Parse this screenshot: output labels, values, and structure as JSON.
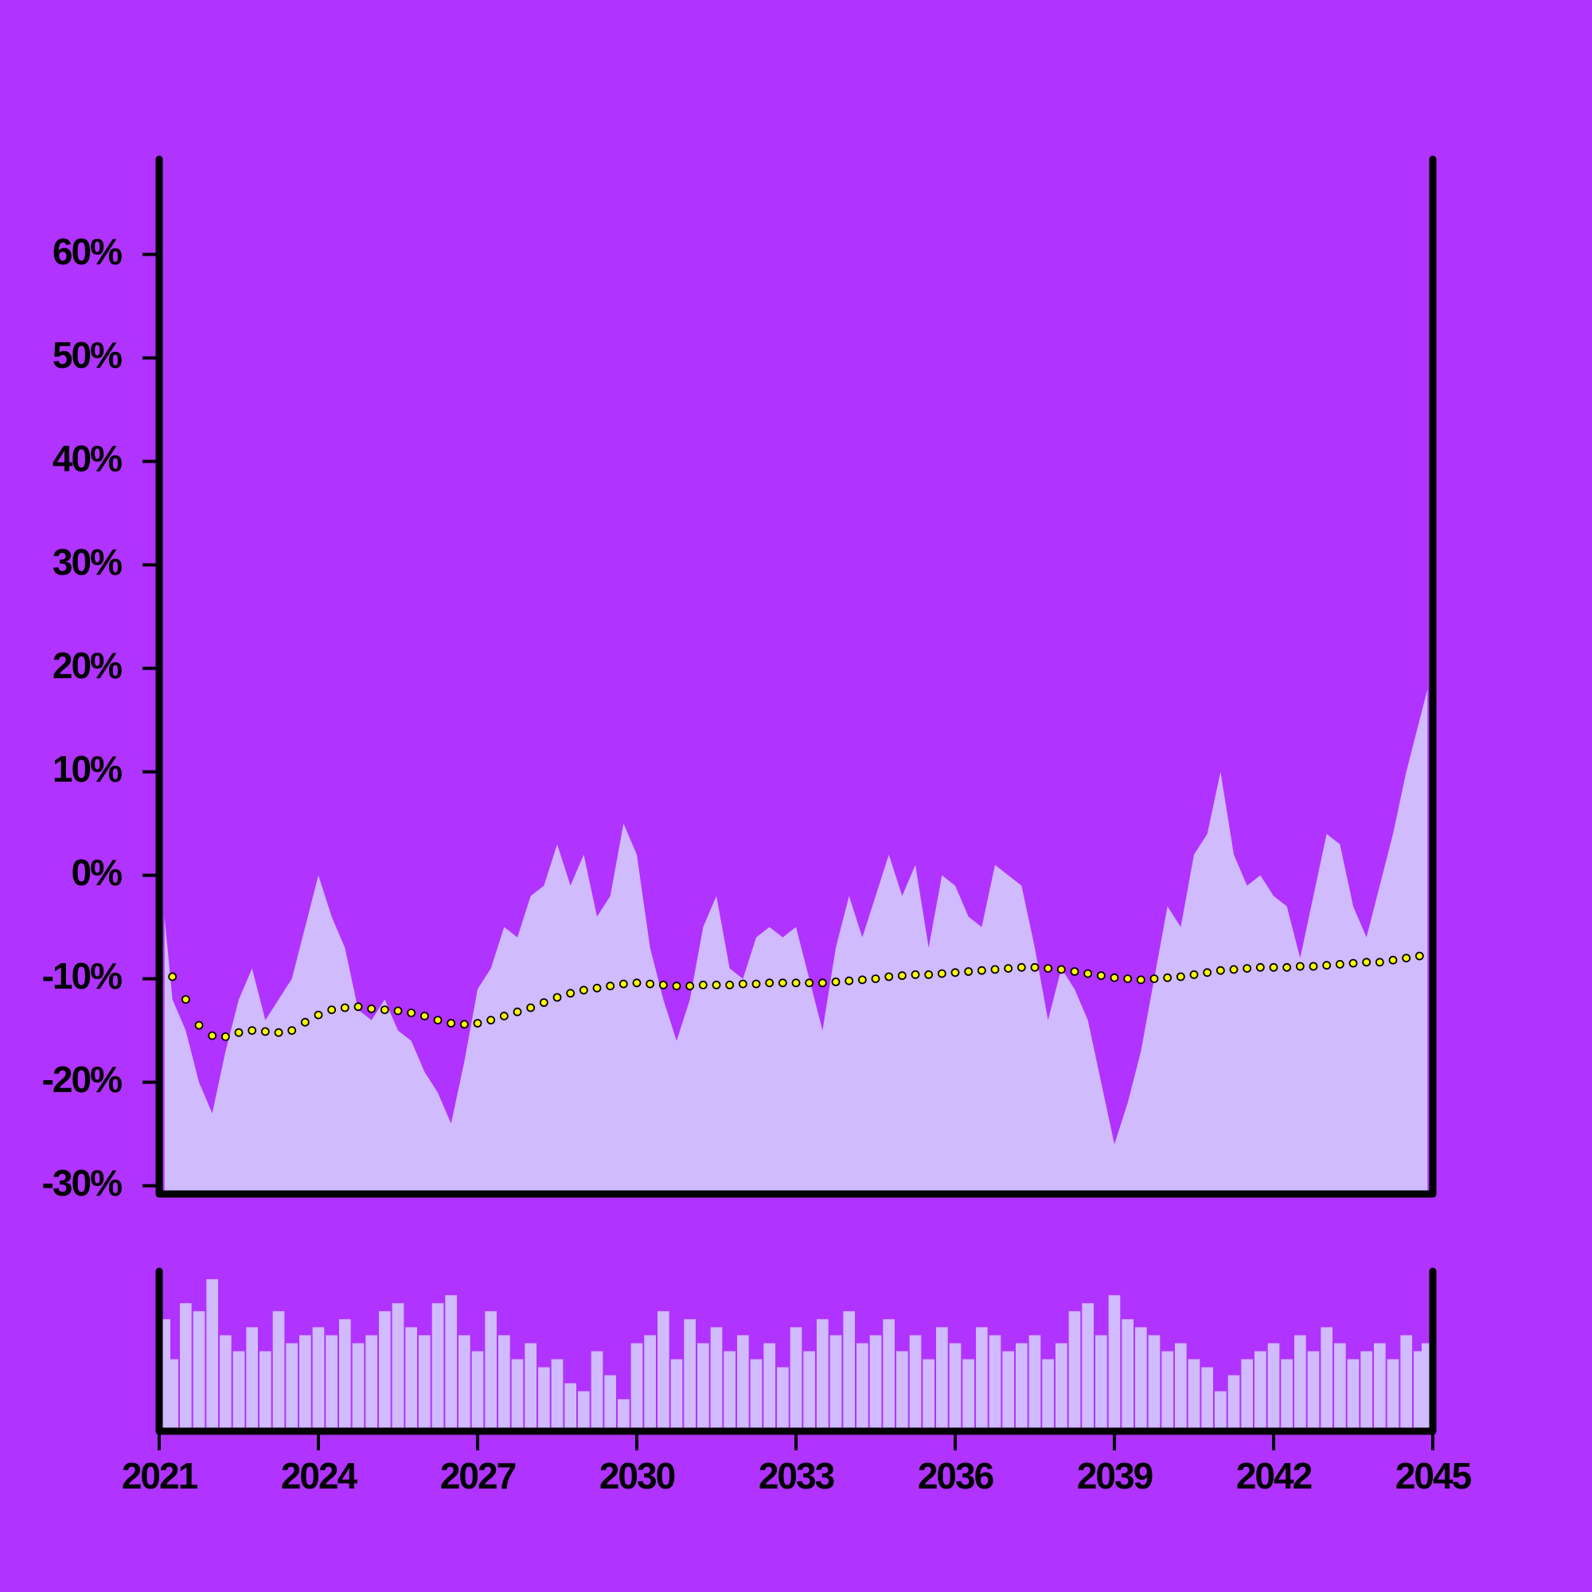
{
  "chart_data": [
    {
      "type": "line",
      "xlim": [
        2021,
        2045
      ],
      "ylim": [
        -30.8,
        69.2
      ],
      "yticks": [
        {
          "value": -30,
          "label": "-30%"
        },
        {
          "value": -20,
          "label": "-20%"
        },
        {
          "value": -10,
          "label": "-10%"
        },
        {
          "value": 0,
          "label": "0%"
        },
        {
          "value": 10,
          "label": "10%"
        },
        {
          "value": 20,
          "label": "20%"
        },
        {
          "value": 30,
          "label": "30%"
        },
        {
          "value": 40,
          "label": "40%"
        },
        {
          "value": 50,
          "label": "50%"
        },
        {
          "value": 60,
          "label": "60%"
        }
      ],
      "background": "#b033ff",
      "series": [
        {
          "type": "area",
          "color": "#d0bbff",
          "x": [
            2021.1,
            2021.25,
            2021.5,
            2021.75,
            2022,
            2022.25,
            2022.5,
            2022.75,
            2023,
            2023.25,
            2023.5,
            2023.75,
            2024,
            2024.25,
            2024.5,
            2024.75,
            2025,
            2025.25,
            2025.5,
            2025.75,
            2026,
            2026.25,
            2026.5,
            2026.75,
            2027,
            2027.25,
            2027.5,
            2027.75,
            2028,
            2028.25,
            2028.5,
            2028.75,
            2029,
            2029.25,
            2029.5,
            2029.75,
            2030,
            2030.25,
            2030.5,
            2030.75,
            2031,
            2031.25,
            2031.5,
            2031.75,
            2032,
            2032.25,
            2032.5,
            2032.75,
            2033,
            2033.25,
            2033.5,
            2033.75,
            2034,
            2034.25,
            2034.5,
            2034.75,
            2035,
            2035.25,
            2035.5,
            2035.75,
            2036,
            2036.25,
            2036.5,
            2036.75,
            2037,
            2037.25,
            2037.5,
            2037.75,
            2038,
            2038.25,
            2038.5,
            2038.75,
            2039,
            2039.25,
            2039.5,
            2039.75,
            2040,
            2040.25,
            2040.5,
            2040.75,
            2041,
            2041.25,
            2041.5,
            2041.75,
            2042,
            2042.25,
            2042.5,
            2042.75,
            2043,
            2043.25,
            2043.5,
            2043.75,
            2044,
            2044.25,
            2044.5,
            2044.75,
            2044.9
          ],
          "values": [
            -4,
            -12,
            -15,
            -20,
            -23,
            -17,
            -12,
            -9,
            -14,
            -12,
            -10,
            -5,
            0,
            -4,
            -7,
            -13,
            -14,
            -12,
            -15,
            -16,
            -19,
            -21,
            -24,
            -18,
            -11,
            -9,
            -5,
            -6,
            -2,
            -1,
            3,
            -1,
            2,
            -4,
            -2,
            5,
            2,
            -7,
            -12,
            -16,
            -12,
            -5,
            -2,
            -9,
            -10,
            -6,
            -5,
            -6,
            -5,
            -10,
            -15,
            -7,
            -2,
            -6,
            -2,
            2,
            -2,
            1,
            -7,
            0,
            -1,
            -4,
            -5,
            1,
            0,
            -1,
            -7,
            -14,
            -9,
            -11,
            -14,
            -20,
            -26,
            -22,
            -17,
            -10,
            -3,
            -5,
            2,
            4,
            10,
            2,
            -1,
            0,
            -2,
            -3,
            -8,
            -2,
            4,
            3,
            -3,
            -6,
            -1,
            4,
            10,
            15,
            18
          ]
        },
        {
          "type": "scatter",
          "color": "#ffff00",
          "x": [
            2021.25,
            2021.5,
            2021.75,
            2022,
            2022.25,
            2022.5,
            2022.75,
            2023,
            2023.25,
            2023.5,
            2023.75,
            2024,
            2024.25,
            2024.5,
            2024.75,
            2025,
            2025.25,
            2025.5,
            2025.75,
            2026,
            2026.25,
            2026.5,
            2026.75,
            2027,
            2027.25,
            2027.5,
            2027.75,
            2028,
            2028.25,
            2028.5,
            2028.75,
            2029,
            2029.25,
            2029.5,
            2029.75,
            2030,
            2030.25,
            2030.5,
            2030.75,
            2031,
            2031.25,
            2031.5,
            2031.75,
            2032,
            2032.25,
            2032.5,
            2032.75,
            2033,
            2033.25,
            2033.5,
            2033.75,
            2034,
            2034.25,
            2034.5,
            2034.75,
            2035,
            2035.25,
            2035.5,
            2035.75,
            2036,
            2036.25,
            2036.5,
            2036.75,
            2037,
            2037.25,
            2037.5,
            2037.75,
            2038,
            2038.25,
            2038.5,
            2038.75,
            2039,
            2039.25,
            2039.5,
            2039.75,
            2040,
            2040.25,
            2040.5,
            2040.75,
            2041,
            2041.25,
            2041.5,
            2041.75,
            2042,
            2042.25,
            2042.5,
            2042.75,
            2043,
            2043.25,
            2043.5,
            2043.75,
            2044,
            2044.25,
            2044.5,
            2044.75
          ],
          "values": [
            -9.8,
            -12,
            -14.5,
            -15.5,
            -15.6,
            -15.2,
            -15,
            -15.1,
            -15.2,
            -15,
            -14.2,
            -13.5,
            -13,
            -12.8,
            -12.7,
            -12.9,
            -13,
            -13.1,
            -13.3,
            -13.6,
            -14,
            -14.3,
            -14.4,
            -14.3,
            -14,
            -13.6,
            -13.2,
            -12.8,
            -12.3,
            -11.8,
            -11.4,
            -11.1,
            -10.9,
            -10.7,
            -10.5,
            -10.4,
            -10.5,
            -10.6,
            -10.7,
            -10.7,
            -10.6,
            -10.6,
            -10.6,
            -10.5,
            -10.5,
            -10.4,
            -10.4,
            -10.4,
            -10.4,
            -10.4,
            -10.3,
            -10.2,
            -10.1,
            -10,
            -9.8,
            -9.7,
            -9.6,
            -9.6,
            -9.5,
            -9.4,
            -9.3,
            -9.2,
            -9.1,
            -9,
            -8.9,
            -8.9,
            -9,
            -9.1,
            -9.3,
            -9.5,
            -9.7,
            -9.9,
            -10,
            -10.1,
            -10,
            -9.9,
            -9.8,
            -9.6,
            -9.4,
            -9.2,
            -9.1,
            -9,
            -8.9,
            -8.9,
            -8.9,
            -8.8,
            -8.8,
            -8.7,
            -8.6,
            -8.5,
            -8.4,
            -8.4,
            -8.2,
            -8,
            -7.8
          ]
        }
      ]
    },
    {
      "type": "bar",
      "color": "#d0bbff",
      "xlim": [
        2021,
        2045
      ],
      "ylim": [
        0,
        100
      ],
      "xticks": [
        2021,
        2024,
        2027,
        2030,
        2033,
        2036,
        2039,
        2042,
        2045
      ],
      "x": [
        2021.1,
        2021.25,
        2021.5,
        2021.75,
        2022,
        2022.25,
        2022.5,
        2022.75,
        2023,
        2023.25,
        2023.5,
        2023.75,
        2024,
        2024.25,
        2024.5,
        2024.75,
        2025,
        2025.25,
        2025.5,
        2025.75,
        2026,
        2026.25,
        2026.5,
        2026.75,
        2027,
        2027.25,
        2027.5,
        2027.75,
        2028,
        2028.25,
        2028.5,
        2028.75,
        2029,
        2029.25,
        2029.5,
        2029.75,
        2030,
        2030.25,
        2030.5,
        2030.75,
        2031,
        2031.25,
        2031.5,
        2031.75,
        2032,
        2032.25,
        2032.5,
        2032.75,
        2033,
        2033.25,
        2033.5,
        2033.75,
        2034,
        2034.25,
        2034.5,
        2034.75,
        2035,
        2035.25,
        2035.5,
        2035.75,
        2036,
        2036.25,
        2036.5,
        2036.75,
        2037,
        2037.25,
        2037.5,
        2037.75,
        2038,
        2038.25,
        2038.5,
        2038.75,
        2039,
        2039.25,
        2039.5,
        2039.75,
        2040,
        2040.25,
        2040.5,
        2040.75,
        2041,
        2041.25,
        2041.5,
        2041.75,
        2042,
        2042.25,
        2042.5,
        2042.75,
        2043,
        2043.25,
        2043.5,
        2043.75,
        2044,
        2044.25,
        2044.5,
        2044.75,
        2044.9
      ],
      "values": [
        70,
        45,
        80,
        75,
        95,
        60,
        50,
        65,
        50,
        75,
        55,
        60,
        65,
        60,
        70,
        55,
        60,
        75,
        80,
        65,
        60,
        80,
        85,
        60,
        50,
        75,
        60,
        45,
        55,
        40,
        45,
        30,
        25,
        50,
        35,
        20,
        55,
        60,
        75,
        45,
        70,
        55,
        65,
        50,
        60,
        45,
        55,
        40,
        65,
        50,
        70,
        60,
        75,
        55,
        60,
        70,
        50,
        60,
        45,
        65,
        55,
        45,
        65,
        60,
        50,
        55,
        60,
        45,
        55,
        75,
        80,
        60,
        85,
        70,
        65,
        60,
        50,
        55,
        45,
        40,
        25,
        35,
        45,
        50,
        55,
        45,
        60,
        50,
        65,
        55,
        45,
        50,
        55,
        45,
        60,
        50,
        55
      ]
    }
  ]
}
